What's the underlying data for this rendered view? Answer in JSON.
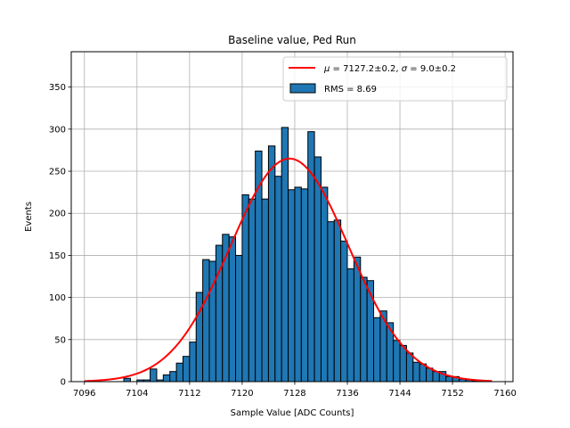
{
  "chart_data": {
    "type": "bar",
    "title": "Baseline value, Ped Run",
    "xlabel": "Sample Value [ADC Counts]",
    "ylabel": "Events",
    "xlim": [
      7094,
      7161.2
    ],
    "ylim": [
      0,
      392
    ],
    "grid": true,
    "legend_position": "top-right",
    "xticks": [
      7096,
      7104,
      7112,
      7120,
      7128,
      7136,
      7144,
      7152,
      7160
    ],
    "yticks": [
      0,
      50,
      100,
      150,
      200,
      250,
      300,
      350
    ],
    "bin_width": 1,
    "bins": {
      "start": [
        7102,
        7103,
        7104,
        7105,
        7106,
        7107,
        7108,
        7109,
        7110,
        7111,
        7112,
        7113,
        7114,
        7115,
        7116,
        7117,
        7118,
        7119,
        7120,
        7121,
        7122,
        7123,
        7124,
        7125,
        7126,
        7127,
        7128,
        7129,
        7130,
        7131,
        7132,
        7133,
        7134,
        7135,
        7136,
        7137,
        7138,
        7139,
        7140,
        7141,
        7142,
        7143,
        7144,
        7145,
        7146,
        7147,
        7148,
        7149,
        7150,
        7151,
        7152,
        7153,
        7154,
        7155,
        7156
      ],
      "counts": [
        4,
        0,
        2,
        2,
        15,
        2,
        8,
        12,
        22,
        30,
        47,
        106,
        145,
        143,
        162,
        175,
        172,
        150,
        222,
        217,
        274,
        217,
        280,
        244,
        302,
        228,
        231,
        229,
        297,
        267,
        231,
        190,
        192,
        167,
        134,
        148,
        124,
        120,
        76,
        84,
        70,
        49,
        43,
        34,
        23,
        21,
        16,
        12,
        12,
        6,
        6,
        3,
        2,
        1,
        1
      ]
    },
    "series": [
      {
        "name": "$\\mu = 7127.2\\pm0.2$, $\\sigma = 9.0\\pm0.2$",
        "kind": "gaussian_fit",
        "color": "#ff0000",
        "mu": 7127.2,
        "sigma": 9.0,
        "amplitude": 265,
        "x_range": [
          7096,
          7158
        ]
      },
      {
        "name": "RMS = 8.69",
        "kind": "histogram",
        "color": "#1f77b4"
      }
    ],
    "legend": {
      "fit_label_mu": "μ",
      "fit_label_mid": " = 7127.2±0.2, ",
      "fit_label_sigma": "σ",
      "fit_label_end": " = 9.0±0.2",
      "hist_label": "RMS = 8.69"
    }
  }
}
